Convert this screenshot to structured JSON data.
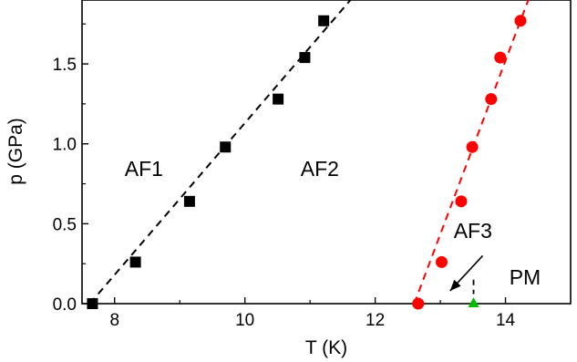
{
  "chart_data": {
    "type": "scatter",
    "title": "",
    "xlabel": "T (K)",
    "ylabel": "p (GPa)",
    "xlim": [
      7.5,
      15.0
    ],
    "ylim": [
      0.0,
      1.9
    ],
    "x_ticks": [
      8,
      10,
      12,
      14
    ],
    "x_tick_labels": [
      "8",
      "10",
      "12",
      "14"
    ],
    "y_ticks": [
      0.0,
      0.5,
      1.0,
      1.5
    ],
    "y_tick_labels": [
      "0.0",
      "0.5",
      "1.0",
      "1.5"
    ],
    "grid": false,
    "legend": "none",
    "series": [
      {
        "marker": "square",
        "color": "#000000",
        "x": [
          7.66,
          8.32,
          9.15,
          9.7,
          10.51,
          10.92,
          11.21
        ],
        "y": [
          0.0,
          0.26,
          0.64,
          0.98,
          1.28,
          1.54,
          1.77
        ]
      },
      {
        "marker": "circle",
        "color": "#ff0000",
        "x": [
          12.66,
          13.02,
          13.32,
          13.49,
          13.78,
          13.92,
          14.23
        ],
        "y": [
          0.0,
          0.26,
          0.64,
          0.98,
          1.28,
          1.54,
          1.77
        ]
      },
      {
        "marker": "triangle",
        "color": "#00bb00",
        "x": [
          13.51
        ],
        "y": [
          0.0
        ]
      }
    ],
    "fit_lines": [
      {
        "color": "#000000",
        "style": "dashed",
        "x": [
          7.62,
          11.62
        ],
        "y": [
          0.0,
          1.9
        ]
      },
      {
        "color": "#ff0000",
        "style": "dashed",
        "x": [
          12.6,
          14.35
        ],
        "y": [
          0.0,
          1.9
        ]
      }
    ],
    "annotations": [
      {
        "text": "AF1",
        "x": 8.45,
        "y": 0.8
      },
      {
        "text": "AF2",
        "x": 11.15,
        "y": 0.8
      },
      {
        "text": "AF3",
        "x": 13.5,
        "y": 0.41
      },
      {
        "text": "PM",
        "x": 14.3,
        "y": 0.12
      }
    ],
    "arrow": {
      "from": [
        13.65,
        0.3
      ],
      "to": [
        13.15,
        0.08
      ]
    },
    "marker_line": {
      "x": 13.51,
      "y": [
        0.06,
        0.15
      ]
    }
  }
}
